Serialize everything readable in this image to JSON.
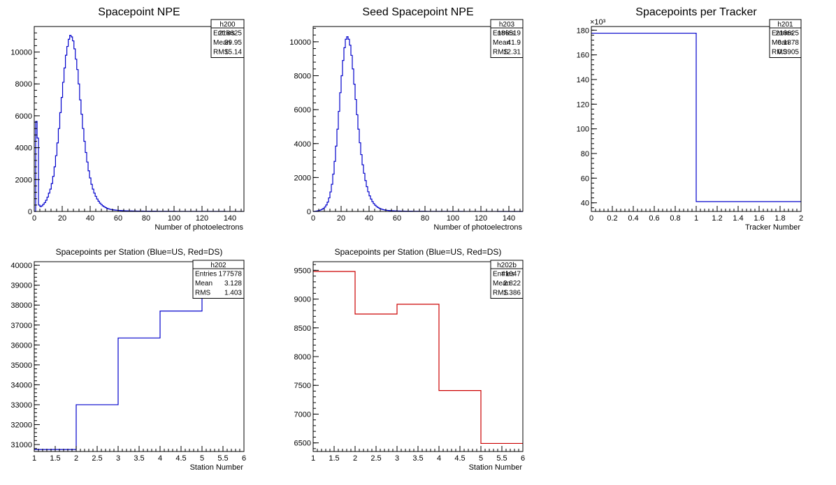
{
  "chart_data": [
    {
      "id": "h200",
      "type": "histogram",
      "title": "Spacepoint NPE",
      "xlabel": "Number of photoelectrons",
      "ylabel": "",
      "xlim": [
        0,
        150
      ],
      "ylim": [
        0,
        11600
      ],
      "xticks": [
        0,
        20,
        40,
        60,
        80,
        100,
        120,
        140
      ],
      "xtick_labels": [
        "0",
        "20",
        "40",
        "60",
        "80",
        "100",
        "120",
        "140"
      ],
      "yticks": [
        0,
        2000,
        4000,
        6000,
        8000,
        10000
      ],
      "ytick_labels": [
        "0",
        "2000",
        "4000",
        "6000",
        "8000",
        "10000"
      ],
      "color": "#0000cc",
      "bin_edges": [
        0,
        150
      ],
      "values": [
        0,
        5650,
        4600,
        400,
        300,
        350,
        450,
        550,
        700,
        900,
        1150,
        1400,
        1750,
        2200,
        2800,
        3500,
        4300,
        5200,
        6200,
        7150,
        8100,
        9000,
        9800,
        10350,
        10800,
        11050,
        10950,
        10700,
        10200,
        9550,
        8900,
        8000,
        7000,
        6100,
        5200,
        4400,
        3700,
        3100,
        2550,
        2100,
        1700,
        1400,
        1150,
        950,
        780,
        640,
        520,
        430,
        350,
        290,
        240,
        200,
        165,
        140,
        120,
        105,
        92,
        82,
        74,
        66,
        60,
        55,
        50,
        46,
        42,
        39,
        36,
        34,
        32,
        30,
        28,
        26,
        25,
        24,
        23,
        22,
        21,
        20,
        19,
        18,
        18,
        17,
        16,
        16,
        15,
        15,
        14,
        14,
        13,
        13,
        12,
        12,
        12,
        11,
        11,
        11,
        10,
        10,
        10,
        10,
        9,
        9,
        9,
        9,
        8,
        8,
        8,
        8,
        8,
        7,
        7,
        7,
        7,
        7,
        6,
        6,
        6,
        6,
        6,
        6,
        5,
        5,
        5,
        5,
        5,
        5,
        5,
        4,
        4,
        4,
        4,
        4,
        4,
        4,
        4,
        3,
        3,
        3,
        3,
        3,
        3,
        3,
        3,
        3,
        3,
        3,
        2,
        2
      ],
      "stats": {
        "name": "h200",
        "rows": [
          [
            "Entries",
            "218625"
          ],
          [
            "Mean",
            "39.95"
          ],
          [
            "RMS",
            "15.14"
          ]
        ]
      }
    },
    {
      "id": "h203",
      "type": "histogram",
      "title": "Seed Spacepoint NPE",
      "xlabel": "Number of photoelectrons",
      "ylabel": "",
      "xlim": [
        0,
        150
      ],
      "ylim": [
        0,
        10900
      ],
      "xticks": [
        0,
        20,
        40,
        60,
        80,
        100,
        120,
        140
      ],
      "xtick_labels": [
        "0",
        "20",
        "40",
        "60",
        "80",
        "100",
        "120",
        "140"
      ],
      "yticks": [
        0,
        2000,
        4000,
        6000,
        8000,
        10000
      ],
      "ytick_labels": [
        "0",
        "2000",
        "4000",
        "6000",
        "8000",
        "10000"
      ],
      "color": "#0000cc",
      "bin_edges": [
        0,
        150
      ],
      "values": [
        0,
        10,
        20,
        40,
        60,
        90,
        130,
        180,
        260,
        380,
        550,
        800,
        1150,
        1600,
        2200,
        2950,
        3850,
        4850,
        5900,
        7000,
        8000,
        8900,
        9650,
        10150,
        10300,
        10150,
        9800,
        9200,
        8400,
        7500,
        6600,
        5700,
        4850,
        4050,
        3350,
        2750,
        2250,
        1820,
        1460,
        1160,
        920,
        730,
        580,
        460,
        365,
        290,
        230,
        185,
        150,
        122,
        100,
        83,
        70,
        60,
        52,
        46,
        41,
        37,
        34,
        31,
        28,
        26,
        24,
        22,
        21,
        19,
        18,
        17,
        16,
        15,
        14,
        13,
        12,
        12,
        11,
        11,
        10,
        10,
        9,
        9,
        9,
        8,
        8,
        8,
        7,
        7,
        7,
        7,
        6,
        6,
        6,
        6,
        6,
        5,
        5,
        5,
        5,
        5,
        5,
        4,
        4,
        4,
        4,
        4,
        4,
        4,
        4,
        3,
        3,
        3,
        3,
        3,
        3,
        3,
        3,
        3,
        3,
        2,
        2,
        2,
        2,
        2,
        2,
        2,
        2,
        2,
        2,
        2,
        2,
        2,
        2,
        2,
        1,
        1,
        1,
        1,
        1,
        1,
        1,
        1,
        1,
        1,
        1,
        1,
        1,
        1,
        1,
        1,
        1,
        1
      ],
      "stats": {
        "name": "h203",
        "rows": [
          [
            "Entries",
            "186519"
          ],
          [
            "Mean",
            "41.9"
          ],
          [
            "RMS",
            "12.31"
          ]
        ]
      }
    },
    {
      "id": "h201",
      "type": "histogram",
      "title": "Spacepoints per Tracker",
      "xlabel": "Tracker Number",
      "ylabel": "",
      "exponent_label": "×10³",
      "xlim": [
        0,
        2
      ],
      "ylim": [
        33,
        183
      ],
      "xticks": [
        0,
        0.2,
        0.4,
        0.6,
        0.8,
        1,
        1.2,
        1.4,
        1.6,
        1.8,
        2
      ],
      "xtick_labels": [
        "0",
        "0.2",
        "0.4",
        "0.6",
        "0.8",
        "1",
        "1.2",
        "1.4",
        "1.6",
        "1.8",
        "2"
      ],
      "yticks": [
        40,
        60,
        80,
        100,
        120,
        140,
        160,
        180
      ],
      "ytick_labels": [
        "40",
        "60",
        "80",
        "100",
        "120",
        "140",
        "160",
        "180"
      ],
      "color": "#0000cc",
      "bin_edges": [
        0,
        2
      ],
      "values": [
        177.6,
        41.0
      ],
      "stats": {
        "name": "h201",
        "rows": [
          [
            "Entries",
            "218625"
          ],
          [
            "Mean",
            "0.1878"
          ],
          [
            "RMS",
            "0.3905"
          ]
        ]
      }
    },
    {
      "id": "h202",
      "type": "histogram",
      "title": "Spacepoints per Station (Blue=US, Red=DS)",
      "xlabel": "Station Number",
      "ylabel": "",
      "xlim": [
        1,
        6
      ],
      "ylim": [
        30650,
        40180
      ],
      "xticks": [
        1,
        1.5,
        2,
        2.5,
        3,
        3.5,
        4,
        4.5,
        5,
        5.5,
        6
      ],
      "xtick_labels": [
        "1",
        "1.5",
        "2",
        "2.5",
        "3",
        "3.5",
        "4",
        "4.5",
        "5",
        "5.5",
        "6"
      ],
      "yticks": [
        31000,
        32000,
        33000,
        34000,
        35000,
        36000,
        37000,
        38000,
        39000,
        40000
      ],
      "ytick_labels": [
        "31000",
        "32000",
        "33000",
        "34000",
        "35000",
        "36000",
        "37000",
        "38000",
        "39000",
        "40000"
      ],
      "color": "#0000cc",
      "bin_edges": [
        1,
        6
      ],
      "values": [
        30750,
        33000,
        36350,
        37700,
        39800
      ],
      "stats": {
        "name": "h202",
        "rows": [
          [
            "Entries",
            "177578"
          ],
          [
            "Mean",
            "3.128"
          ],
          [
            "RMS",
            "1.403"
          ]
        ]
      }
    },
    {
      "id": "h202b",
      "type": "histogram",
      "title": "Spacepoints per Station (Blue=US, Red=DS)",
      "xlabel": "Station Number",
      "ylabel": "",
      "xlim": [
        1,
        6
      ],
      "ylim": [
        6350,
        9650
      ],
      "xticks": [
        1,
        1.5,
        2,
        2.5,
        3,
        3.5,
        4,
        4.5,
        5,
        5.5,
        6
      ],
      "xtick_labels": [
        "1",
        "1.5",
        "2",
        "2.5",
        "3",
        "3.5",
        "4",
        "4.5",
        "5",
        "5.5",
        "6"
      ],
      "yticks": [
        6500,
        7000,
        7500,
        8000,
        8500,
        9000,
        9500
      ],
      "ytick_labels": [
        "6500",
        "7000",
        "7500",
        "8000",
        "8500",
        "9000",
        "9500"
      ],
      "color": "#cc0000",
      "bin_edges": [
        1,
        6
      ],
      "values": [
        9480,
        8740,
        8910,
        7410,
        6490
      ],
      "stats": {
        "name": "h202b",
        "rows": [
          [
            "Entries",
            "41047"
          ],
          [
            "Mean",
            "2.822"
          ],
          [
            "RMS",
            "1.386"
          ]
        ]
      }
    }
  ]
}
